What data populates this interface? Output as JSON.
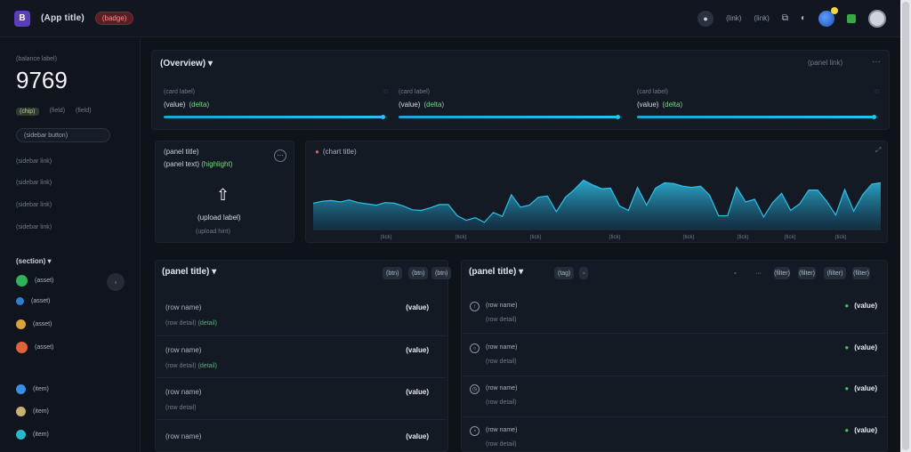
{
  "topbar": {
    "logo_glyph": "B",
    "app_title": "(App title)",
    "badge": "(badge)",
    "circle_icon_glyph": "●",
    "link_1": "(link)",
    "link_2": "(link)",
    "icon_a_glyph": "⧉",
    "icon_b_glyph": "◐"
  },
  "sidebar": {
    "balance_label": "(balance label)",
    "balance": "9769",
    "balance_sub": [
      "(chip)",
      "(field)",
      "(field)"
    ],
    "action_label": "(sidebar button)",
    "links": [
      "(sidebar link)",
      "(sidebar link)",
      "(sidebar link)",
      "(sidebar link)"
    ],
    "section_title": "(section) ▾",
    "assets": [
      {
        "label": "(asset)",
        "color": "#2fb35a"
      },
      {
        "label": "(asset)",
        "color": "#2f7fd0"
      },
      {
        "label": "(asset)",
        "color": "#d9a040"
      },
      {
        "label": "(asset)",
        "color": "#e0643a"
      }
    ],
    "assets_side_glyph": "◦",
    "bottom_items": [
      {
        "label": "(item)",
        "color": "#3a8ee0"
      },
      {
        "label": "(item)",
        "color": "#c8b070"
      },
      {
        "label": "(item)",
        "color": "#2ab8c8"
      }
    ]
  },
  "overview": {
    "title": "(Overview) ▾",
    "link": "(panel link)",
    "more_glyph": "···",
    "cards": [
      {
        "label": "(card label)",
        "value": "(value)",
        "delta": "(delta)",
        "progress_fraction": 0.98
      },
      {
        "label": "(card label)",
        "value": "(value)",
        "delta": "(delta)",
        "progress_fraction": 0.98
      },
      {
        "label": "(card label)",
        "value": "(value)",
        "delta": "(delta)",
        "progress_fraction": 0.98
      }
    ],
    "card_icon_glyph": "◌"
  },
  "upload": {
    "title": "(panel title)",
    "sub": "(panel text)",
    "sub_highlight": "(highlight)",
    "arrow_glyph": "⇧",
    "label": "(upload label)",
    "hint": "(upload hint)",
    "menu_glyph": "⋯"
  },
  "chart_data": {
    "type": "area",
    "title": "(chart title)",
    "title_marker": "●",
    "expand_glyph": "⤢",
    "x": [
      0,
      1,
      2,
      3,
      4,
      5,
      6,
      7,
      8,
      9,
      10,
      11,
      12,
      13,
      14,
      15,
      16,
      17,
      18,
      19,
      20,
      21,
      22,
      23,
      24,
      25,
      26,
      27,
      28,
      29,
      30,
      31,
      32,
      33,
      34,
      35,
      36,
      37,
      38,
      39,
      40,
      41,
      42,
      43,
      44,
      45,
      46,
      47,
      48,
      49,
      50,
      51,
      52,
      53,
      54,
      55,
      56,
      57,
      58,
      59,
      60,
      61,
      62,
      63
    ],
    "y": [
      40,
      43,
      44,
      42,
      45,
      41,
      39,
      37,
      41,
      40,
      36,
      30,
      29,
      33,
      38,
      38,
      21,
      14,
      18,
      11,
      26,
      20,
      53,
      34,
      37,
      49,
      51,
      27,
      49,
      61,
      75,
      68,
      62,
      63,
      36,
      29,
      64,
      37,
      63,
      71,
      70,
      66,
      64,
      66,
      52,
      21,
      21,
      64,
      42,
      46,
      19,
      41,
      55,
      29,
      39,
      60,
      60,
      43,
      22,
      61,
      28,
      53,
      69,
      71
    ],
    "series_color": "#2ec0e8",
    "ylim": [
      0,
      100
    ],
    "tick_labels": [
      "(tick)",
      "(tick)",
      "(tick)",
      "(tick)",
      "(tick)",
      "(tick)",
      "(tick)",
      "(tick)"
    ],
    "grid": true
  },
  "holdings": {
    "title": "(panel title) ▾",
    "buttons": [
      "(btn)",
      "(btn)",
      "(btn)"
    ],
    "rows": [
      {
        "name": "(row name)",
        "value": "(value)",
        "sub": "(row detail)",
        "sub_highlight": "(detail)"
      },
      {
        "name": "(row name)",
        "value": "(value)",
        "sub": "(row detail)",
        "sub_highlight": "(detail)"
      },
      {
        "name": "(row name)",
        "value": "(value)",
        "sub": "(row detail)",
        "sub_highlight": ""
      },
      {
        "name": "(row name)",
        "value": "(value)",
        "sub": "",
        "sub_highlight": ""
      }
    ]
  },
  "transactions": {
    "title": "(panel title) ▾",
    "tag": "(tag)",
    "icon_btns": [
      "◦",
      "···"
    ],
    "filters": [
      "(filter)",
      "(filter)",
      "(filter)",
      "(filter)"
    ],
    "rows": [
      {
        "icon": "↑",
        "name": "(row name)",
        "sub": "(row detail)",
        "value": "(value)",
        "indicator": "●"
      },
      {
        "icon": "○",
        "name": "(row name)",
        "sub": "(row detail)",
        "value": "(value)",
        "indicator": "●"
      },
      {
        "icon": "◷",
        "name": "(row name)",
        "sub": "(row detail)",
        "value": "(value)",
        "indicator": "●"
      },
      {
        "icon": "◔",
        "name": "(row name)",
        "sub": "(row detail)",
        "value": "(value)",
        "indicator": "●"
      }
    ]
  }
}
